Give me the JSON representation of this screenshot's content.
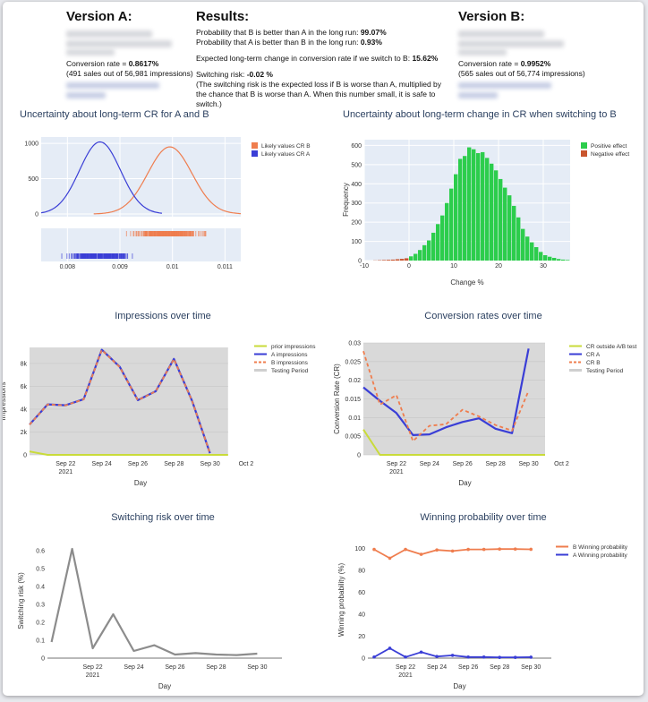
{
  "summary": {
    "version_a": {
      "heading": "Version A:",
      "rate_label": "Conversion rate = ",
      "rate_value": "0.8617%",
      "impressions_line": "(491 sales out of 56,981 impressions)"
    },
    "results": {
      "heading": "Results:",
      "prob_b_label": "Probability that B is better than A in the long run: ",
      "prob_b_value": "99.07%",
      "prob_a_label": "Probability that A is better than B in the long run: ",
      "prob_a_value": "0.93%",
      "expected_label": "Expected long-term change in conversion rate if we switch to B: ",
      "expected_value": "15.62%",
      "risk_label": "Switching risk: ",
      "risk_value": "-0.02 %",
      "risk_explain": "(The switching risk is the expected loss if B is worse than A, multiplied by the chance that B is worse than A. When this number small, it is safe to switch.)"
    },
    "version_b": {
      "heading": "Version B:",
      "rate_label": "Conversion rate = ",
      "rate_value": "0.9952%",
      "impressions_line": "(565 sales out of 56,774 impressions)"
    }
  },
  "colors": {
    "title": "#2a3f5f",
    "plot_bg": "#e5ecf6",
    "grid_bg": "#d9d9d9",
    "orange": "#ef7d4e",
    "blue": "#3a3ed6",
    "green": "#2ccd4c",
    "red_orange": "#c9552e",
    "lime": "#c9db3a",
    "gray": "#8c8c8c"
  },
  "chart_data": [
    {
      "id": "uncertainty_ab",
      "type": "line",
      "title": "Uncertainty about long-term CR for A and B",
      "x_ticks": [
        "0.008",
        "0.009",
        "0.01",
        "0.011"
      ],
      "x_tick_values": [
        0.008,
        0.009,
        0.01,
        0.011
      ],
      "xlim": [
        0.0075,
        0.0113
      ],
      "ylim": [
        0,
        1090
      ],
      "y_ticks": [
        0,
        500,
        1000
      ],
      "series": [
        {
          "name": "Likely values CR B",
          "mean": 0.00995,
          "sd": 0.00042,
          "peak": 950,
          "x_range": [
            0.0085,
            0.0113
          ]
        },
        {
          "name": "Likely values CR A",
          "mean": 0.00862,
          "sd": 0.00039,
          "peak": 1020,
          "x_range": [
            0.0075,
            0.0098
          ]
        }
      ],
      "legend_position": "top-right"
    },
    {
      "id": "change_histogram",
      "type": "bar",
      "title": "Uncertainty about long-term change in CR when switching to B",
      "xlabel": "Change %",
      "ylabel": "Frequency",
      "x_ticks": [
        -10,
        0,
        10,
        20,
        30
      ],
      "y_ticks": [
        0,
        100,
        200,
        300,
        400,
        500,
        600
      ],
      "xlim": [
        -10,
        36
      ],
      "ylim": [
        0,
        630
      ],
      "bin_width": 1,
      "bins_start": -8,
      "values": [
        1,
        2,
        3,
        4,
        5,
        7,
        9,
        12,
        22,
        35,
        55,
        80,
        105,
        145,
        190,
        235,
        300,
        375,
        450,
        530,
        545,
        590,
        580,
        560,
        565,
        535,
        505,
        470,
        425,
        380,
        340,
        285,
        225,
        165,
        125,
        95,
        70,
        45,
        28,
        20,
        14,
        8,
        5,
        3
      ],
      "legend": [
        "Positive effect",
        "Negative effect"
      ],
      "legend_position": "top-right"
    },
    {
      "id": "impressions_time",
      "type": "line",
      "title": "Impressions over time",
      "xlabel": "Day",
      "ylabel": "Impressions",
      "x_labels": [
        "Sep 22",
        "Sep 24",
        "Sep 26",
        "Sep 28",
        "Sep 30",
        "Oct 2"
      ],
      "x_year": "2021",
      "days": [
        20,
        21,
        22,
        23,
        24,
        25,
        26,
        27,
        28,
        29,
        30,
        31
      ],
      "x_tick_days": [
        22,
        24,
        26,
        28,
        30,
        32
      ],
      "y_ticks": [
        "0",
        "2k",
        "4k",
        "6k",
        "8k"
      ],
      "y_tick_values": [
        0,
        2000,
        4000,
        6000,
        8000
      ],
      "ylim": [
        0,
        9400
      ],
      "series": [
        {
          "name": "prior impressions",
          "x": [
            20,
            21
          ],
          "values": [
            300,
            0
          ]
        },
        {
          "name": "A impressions",
          "values": [
            2650,
            4420,
            4340,
            4870,
            9200,
            7700,
            4790,
            5570,
            8400,
            4750,
            150
          ]
        },
        {
          "name": "B impressions",
          "values": [
            2640,
            4410,
            4330,
            4860,
            9180,
            7680,
            4780,
            5560,
            8380,
            4740,
            140
          ]
        },
        {
          "name": "Testing Period"
        }
      ],
      "legend_position": "top-right"
    },
    {
      "id": "conversion_rates_time",
      "type": "line",
      "title": "Conversion rates over time",
      "xlabel": "Day",
      "ylabel": "Conversion Rate (CR)",
      "x_labels": [
        "Sep 22",
        "Sep 24",
        "Sep 26",
        "Sep 28",
        "Sep 30",
        "Oct 2"
      ],
      "x_year": "2021",
      "days": [
        20,
        21,
        22,
        23,
        24,
        25,
        26,
        27,
        28,
        29,
        30,
        31
      ],
      "x_tick_days": [
        22,
        24,
        26,
        28,
        30,
        32
      ],
      "y_ticks": [
        "0",
        "0.005",
        "0.01",
        "0.015",
        "0.02",
        "0.025",
        "0.03"
      ],
      "y_tick_values": [
        0,
        0.005,
        0.01,
        0.015,
        0.02,
        0.025,
        0.03
      ],
      "ylim": [
        0,
        0.03
      ],
      "series": [
        {
          "name": "CR outside A/B test",
          "x": [
            20,
            21
          ],
          "values": [
            0.0068,
            0
          ]
        },
        {
          "name": "CR A",
          "values": [
            0.0181,
            0.0145,
            0.0112,
            0.0053,
            0.0055,
            0.0074,
            0.0088,
            0.0098,
            0.007,
            0.0058,
            0.0285
          ]
        },
        {
          "name": "CR B",
          "values": [
            0.0278,
            0.0135,
            0.016,
            0.0037,
            0.0078,
            0.0082,
            0.0121,
            0.0103,
            0.008,
            0.0065,
            0.0172
          ]
        },
        {
          "name": "Testing Period"
        }
      ],
      "legend_position": "top-right"
    },
    {
      "id": "switching_risk_time",
      "type": "line",
      "title": "Switching risk over time",
      "xlabel": "Day",
      "ylabel": "Switching risk (%)",
      "x_labels": [
        "Sep 22",
        "Sep 24",
        "Sep 26",
        "Sep 28",
        "Sep 30"
      ],
      "x_year": "2021",
      "x_tick_days": [
        22,
        24,
        26,
        28,
        30
      ],
      "days": [
        20,
        21,
        22,
        23,
        24,
        25,
        26,
        27,
        28,
        29,
        30,
        31
      ],
      "y_ticks": [
        "0",
        "0.1",
        "0.2",
        "0.3",
        "0.4",
        "0.5",
        "0.6"
      ],
      "y_tick_values": [
        0,
        0.1,
        0.2,
        0.3,
        0.4,
        0.5,
        0.6
      ],
      "ylim": [
        0,
        0.64
      ],
      "series": [
        {
          "name": "Switching risk",
          "values": [
            0.09,
            0.61,
            0.055,
            0.245,
            0.04,
            0.072,
            0.02,
            0.028,
            0.02,
            0.017,
            0.025
          ]
        }
      ]
    },
    {
      "id": "winning_probability_time",
      "type": "line",
      "title": "Winning probability over time",
      "xlabel": "Day",
      "ylabel": "Winning probability (%)",
      "x_labels": [
        "Sep 22",
        "Sep 24",
        "Sep 26",
        "Sep 28",
        "Sep 30"
      ],
      "x_year": "2021",
      "x_tick_days": [
        22,
        24,
        26,
        28,
        30
      ],
      "days": [
        20,
        21,
        22,
        23,
        24,
        25,
        26,
        27,
        28,
        29,
        30,
        31
      ],
      "y_ticks": [
        "0",
        "20",
        "40",
        "60",
        "80",
        "100"
      ],
      "y_tick_values": [
        0,
        20,
        40,
        60,
        80,
        100
      ],
      "ylim": [
        0,
        106
      ],
      "series": [
        {
          "name": "B Winning probability",
          "values": [
            99,
            91,
            99,
            94.5,
            98.5,
            97.5,
            99,
            99,
            99.3,
            99.3,
            99.1
          ]
        },
        {
          "name": "A Winning probability",
          "values": [
            1,
            9,
            1,
            5.5,
            1.5,
            2.5,
            1,
            1,
            0.7,
            0.7,
            0.9
          ]
        }
      ],
      "legend_position": "top-right"
    }
  ]
}
